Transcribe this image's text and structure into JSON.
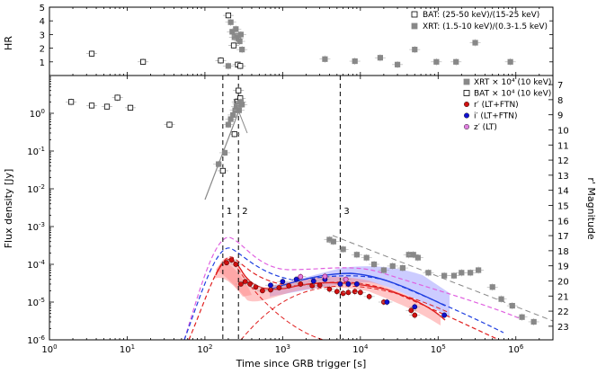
{
  "chart_data": [
    {
      "type": "scatter",
      "panel": "top",
      "ylabel": "HR",
      "xscale": "log",
      "xlim": [
        1,
        3000000
      ],
      "ylim": [
        0,
        5
      ],
      "y_ticks": [
        1,
        2,
        3,
        4,
        5
      ],
      "legend": [
        {
          "name": "BAT: (25-50 keV)/(15-25 keV)",
          "marker": "open-square"
        },
        {
          "name": "XRT: (1.5-10 keV)/(0.3-1.5 keV)",
          "marker": "filled-square"
        }
      ],
      "series": [
        {
          "name": "BAT",
          "color": "#000000",
          "points": [
            [
              3.5,
              1.6
            ],
            [
              16,
              1.0
            ],
            [
              160,
              1.1
            ],
            [
              200,
              4.4
            ],
            [
              235,
              2.2
            ],
            [
              265,
              0.8
            ],
            [
              285,
              0.7
            ]
          ]
        },
        {
          "name": "XRT",
          "color": "#888888",
          "points": [
            [
              200,
              0.7
            ],
            [
              215,
              3.9
            ],
            [
              225,
              3.2
            ],
            [
              240,
              2.8
            ],
            [
              250,
              3.4
            ],
            [
              260,
              2.9
            ],
            [
              270,
              2.7
            ],
            [
              280,
              2.5
            ],
            [
              290,
              3.0
            ],
            [
              300,
              1.9
            ],
            [
              3500,
              1.2
            ],
            [
              8500,
              1.05
            ],
            [
              18000,
              1.3
            ],
            [
              30000,
              0.8
            ],
            [
              50000,
              1.9
            ],
            [
              95000,
              1.0
            ],
            [
              170000,
              1.0
            ],
            [
              300000,
              2.4
            ],
            [
              850000,
              1.0
            ]
          ]
        }
      ]
    },
    {
      "type": "scatter",
      "panel": "bottom",
      "title": "",
      "xlabel": "Time since GRB trigger [s]",
      "ylabel": "Flux density [Jy]",
      "ylabel_right": "r' Magnitude",
      "xscale": "log",
      "yscale": "log",
      "xlim": [
        1,
        3000000
      ],
      "ylim": [
        1e-06,
        10
      ],
      "x_ticks": [
        "10^0",
        "10^1",
        "10^2",
        "10^3",
        "10^4",
        "10^5",
        "10^6"
      ],
      "y_ticks": [
        "10^-6",
        "10^-5",
        "10^-4",
        "10^-3",
        "10^-2",
        "10^-1",
        "10^0"
      ],
      "right_ticks": [
        7,
        8,
        9,
        10,
        11,
        12,
        13,
        14,
        15,
        16,
        17,
        18,
        19,
        20,
        21,
        22,
        23
      ],
      "legend": [
        {
          "name": "XRT × 10⁴ (10 keV)",
          "marker": "filled-square",
          "color": "#888888"
        },
        {
          "name": "BAT × 10⁴ (10 keV)",
          "marker": "open-square",
          "color": "#000000"
        },
        {
          "name": "r′ (LT+FTN)",
          "marker": "circle",
          "color": "#d01010"
        },
        {
          "name": "i′ (LT+FTN)",
          "marker": "circle",
          "color": "#1010d0"
        },
        {
          "name": "z′ (LT)",
          "marker": "circle",
          "color": "#e080e0"
        }
      ],
      "vlines": [
        {
          "x": 170,
          "label": "1"
        },
        {
          "x": 270,
          "label": "2"
        },
        {
          "x": 5500,
          "label": "3"
        }
      ],
      "series": [
        {
          "name": "BAT",
          "points": [
            [
              1.9,
              2.0
            ],
            [
              3.5,
              1.6
            ],
            [
              5.5,
              1.5
            ],
            [
              7.5,
              2.6
            ],
            [
              11,
              1.4
            ],
            [
              35,
              0.5
            ],
            [
              170,
              0.03
            ],
            [
              240,
              0.28
            ],
            [
              260,
              2.0
            ],
            [
              270,
              4.0
            ],
            [
              285,
              2.5
            ]
          ]
        },
        {
          "name": "XRT",
          "points": [
            [
              150,
              0.045
            ],
            [
              180,
              0.09
            ],
            [
              200,
              0.5
            ],
            [
              215,
              0.7
            ],
            [
              230,
              0.9
            ],
            [
              245,
              1.2
            ],
            [
              255,
              1.5
            ],
            [
              265,
              1.8
            ],
            [
              275,
              1.2
            ],
            [
              290,
              2.0
            ],
            [
              300,
              1.7
            ],
            [
              4000,
              0.00045
            ],
            [
              4500,
              0.0004
            ],
            [
              6000,
              0.00025
            ],
            [
              9000,
              0.00018
            ],
            [
              12000,
              0.00015
            ],
            [
              15000,
              0.0001
            ],
            [
              20000,
              7e-05
            ],
            [
              26000,
              9e-05
            ],
            [
              35000,
              8e-05
            ],
            [
              42000,
              0.00018
            ],
            [
              48000,
              0.00018
            ],
            [
              55000,
              0.00015
            ],
            [
              75000,
              6e-05
            ],
            [
              120000,
              5e-05
            ],
            [
              160000,
              5e-05
            ],
            [
              200000,
              6e-05
            ],
            [
              260000,
              6e-05
            ],
            [
              330000,
              7e-05
            ],
            [
              500000,
              2.5e-05
            ],
            [
              650000,
              1.2e-05
            ],
            [
              900000,
              8e-06
            ],
            [
              1200000,
              4e-06
            ],
            [
              1700000,
              3e-06
            ]
          ]
        },
        {
          "name": "r'",
          "points": [
            [
              190,
              0.00011
            ],
            [
              220,
              0.00013
            ],
            [
              250,
              0.0001
            ],
            [
              290,
              3e-05
            ],
            [
              330,
              3.5e-05
            ],
            [
              380,
              3e-05
            ],
            [
              450,
              2.5e-05
            ],
            [
              550,
              2e-05
            ],
            [
              700,
              2.1e-05
            ],
            [
              900,
              2.4e-05
            ],
            [
              1200,
              2.7e-05
            ],
            [
              1700,
              3e-05
            ],
            [
              2400,
              2.7e-05
            ],
            [
              3000,
              2.8e-05
            ],
            [
              4000,
              2.2e-05
            ],
            [
              5000,
              1.9e-05
            ],
            [
              6000,
              1.7e-05
            ],
            [
              7000,
              1.8e-05
            ],
            [
              8500,
              1.9e-05
            ],
            [
              10000,
              1.8e-05
            ],
            [
              13000,
              1.4e-05
            ],
            [
              20000,
              1e-05
            ],
            [
              45000,
              6e-06
            ],
            [
              50000,
              4.5e-06
            ]
          ]
        },
        {
          "name": "i'",
          "points": [
            [
              700,
              2.8e-05
            ],
            [
              1000,
              3.5e-05
            ],
            [
              1500,
              4e-05
            ],
            [
              2500,
              3.6e-05
            ],
            [
              3500,
              4e-05
            ],
            [
              5500,
              3e-05
            ],
            [
              7000,
              3e-05
            ],
            [
              9000,
              3e-05
            ],
            [
              22000,
              1e-05
            ],
            [
              50000,
              7.5e-06
            ],
            [
              120000,
              4.5e-06
            ]
          ]
        },
        {
          "name": "z'",
          "points": [
            [
              1700,
              4.7e-05
            ],
            [
              3500,
              4.8e-05
            ],
            [
              6500,
              4e-05
            ]
          ]
        }
      ]
    }
  ]
}
